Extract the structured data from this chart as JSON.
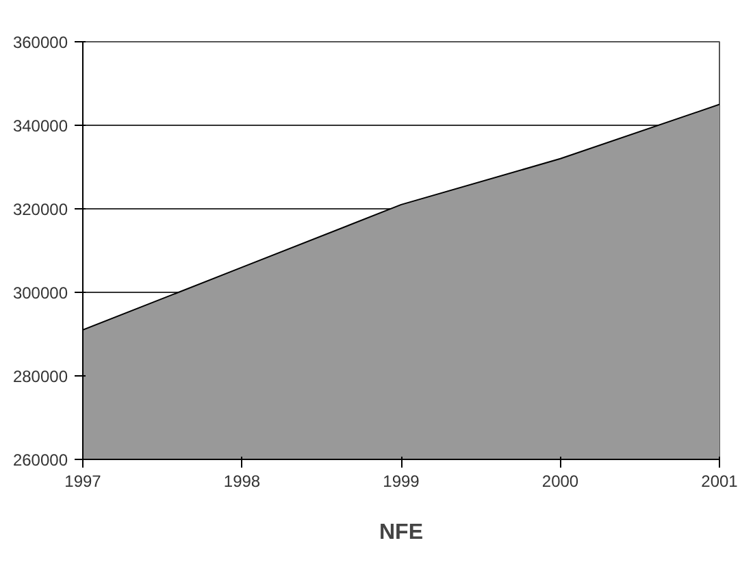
{
  "chart_data": {
    "type": "area",
    "title": "NFE",
    "x": [
      1997,
      1998,
      1999,
      2000,
      2001
    ],
    "values": [
      291000,
      306000,
      321000,
      332000,
      345000
    ],
    "color": "#999999",
    "xlim": [
      1997,
      2001
    ],
    "xticks": [
      1997,
      1998,
      1999,
      2000,
      2001
    ],
    "ylim": [
      260000,
      360000
    ],
    "yticks": [
      260000,
      280000,
      300000,
      320000,
      340000,
      360000
    ],
    "grid": "y"
  }
}
